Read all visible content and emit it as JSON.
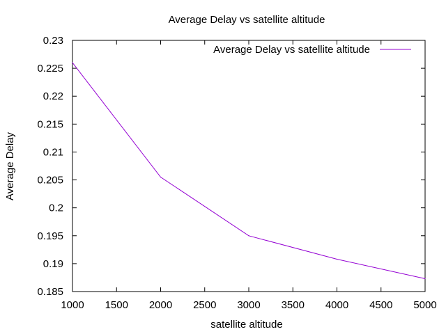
{
  "chart_data": {
    "type": "line",
    "title": "Average Delay vs satellite altitude",
    "xlabel": "satellite altitude",
    "ylabel": "Average Delay",
    "xlim": [
      1000,
      5000
    ],
    "ylim": [
      0.185,
      0.23
    ],
    "x_ticks": [
      1000,
      1500,
      2000,
      2500,
      3000,
      3500,
      4000,
      4500,
      5000
    ],
    "y_ticks": [
      0.185,
      0.19,
      0.195,
      0.2,
      0.205,
      0.21,
      0.215,
      0.22,
      0.225,
      0.23
    ],
    "y_tick_labels": [
      "0.185",
      "0.19",
      "0.195",
      "0.2",
      "0.205",
      "0.21",
      "0.215",
      "0.22",
      "0.225",
      "0.23"
    ],
    "grid": false,
    "legend_position": "top-right",
    "series": [
      {
        "name": "Average Delay vs satellite altitude",
        "color": "#9400d3",
        "x": [
          1000,
          2000,
          3000,
          4000,
          5000
        ],
        "y": [
          0.226,
          0.2055,
          0.195,
          0.1908,
          0.1873
        ]
      }
    ]
  }
}
